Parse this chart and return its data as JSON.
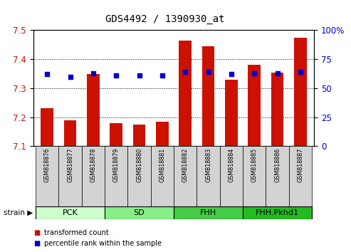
{
  "title": "GDS4492 / 1390930_at",
  "samples": [
    "GSM818876",
    "GSM818877",
    "GSM818878",
    "GSM818879",
    "GSM818880",
    "GSM818881",
    "GSM818882",
    "GSM818883",
    "GSM818884",
    "GSM818885",
    "GSM818886",
    "GSM818887"
  ],
  "transformed_count": [
    7.23,
    7.19,
    7.35,
    7.18,
    7.175,
    7.185,
    7.465,
    7.445,
    7.33,
    7.38,
    7.355,
    7.475
  ],
  "percentile_rank": [
    62,
    60,
    63,
    61,
    61,
    61,
    64,
    64,
    62,
    63,
    63,
    64
  ],
  "ylim_left": [
    7.1,
    7.5
  ],
  "ylim_right": [
    0,
    100
  ],
  "yticks_left": [
    7.1,
    7.2,
    7.3,
    7.4,
    7.5
  ],
  "yticks_right": [
    0,
    25,
    50,
    75,
    100
  ],
  "bar_color": "#cc1100",
  "dot_color": "#0000cc",
  "bg_color": "#ffffff",
  "groups": [
    {
      "label": "PCK",
      "start": 0,
      "end": 2,
      "color": "#ccffcc"
    },
    {
      "label": "SD",
      "start": 3,
      "end": 5,
      "color": "#88ee88"
    },
    {
      "label": "FHH",
      "start": 6,
      "end": 8,
      "color": "#44cc44"
    },
    {
      "label": "FHH.Pkhd1",
      "start": 9,
      "end": 11,
      "color": "#22bb22"
    }
  ],
  "strain_label": "strain",
  "legend_items": [
    {
      "label": "transformed count",
      "color": "#cc1100"
    },
    {
      "label": "percentile rank within the sample",
      "color": "#0000cc"
    }
  ]
}
